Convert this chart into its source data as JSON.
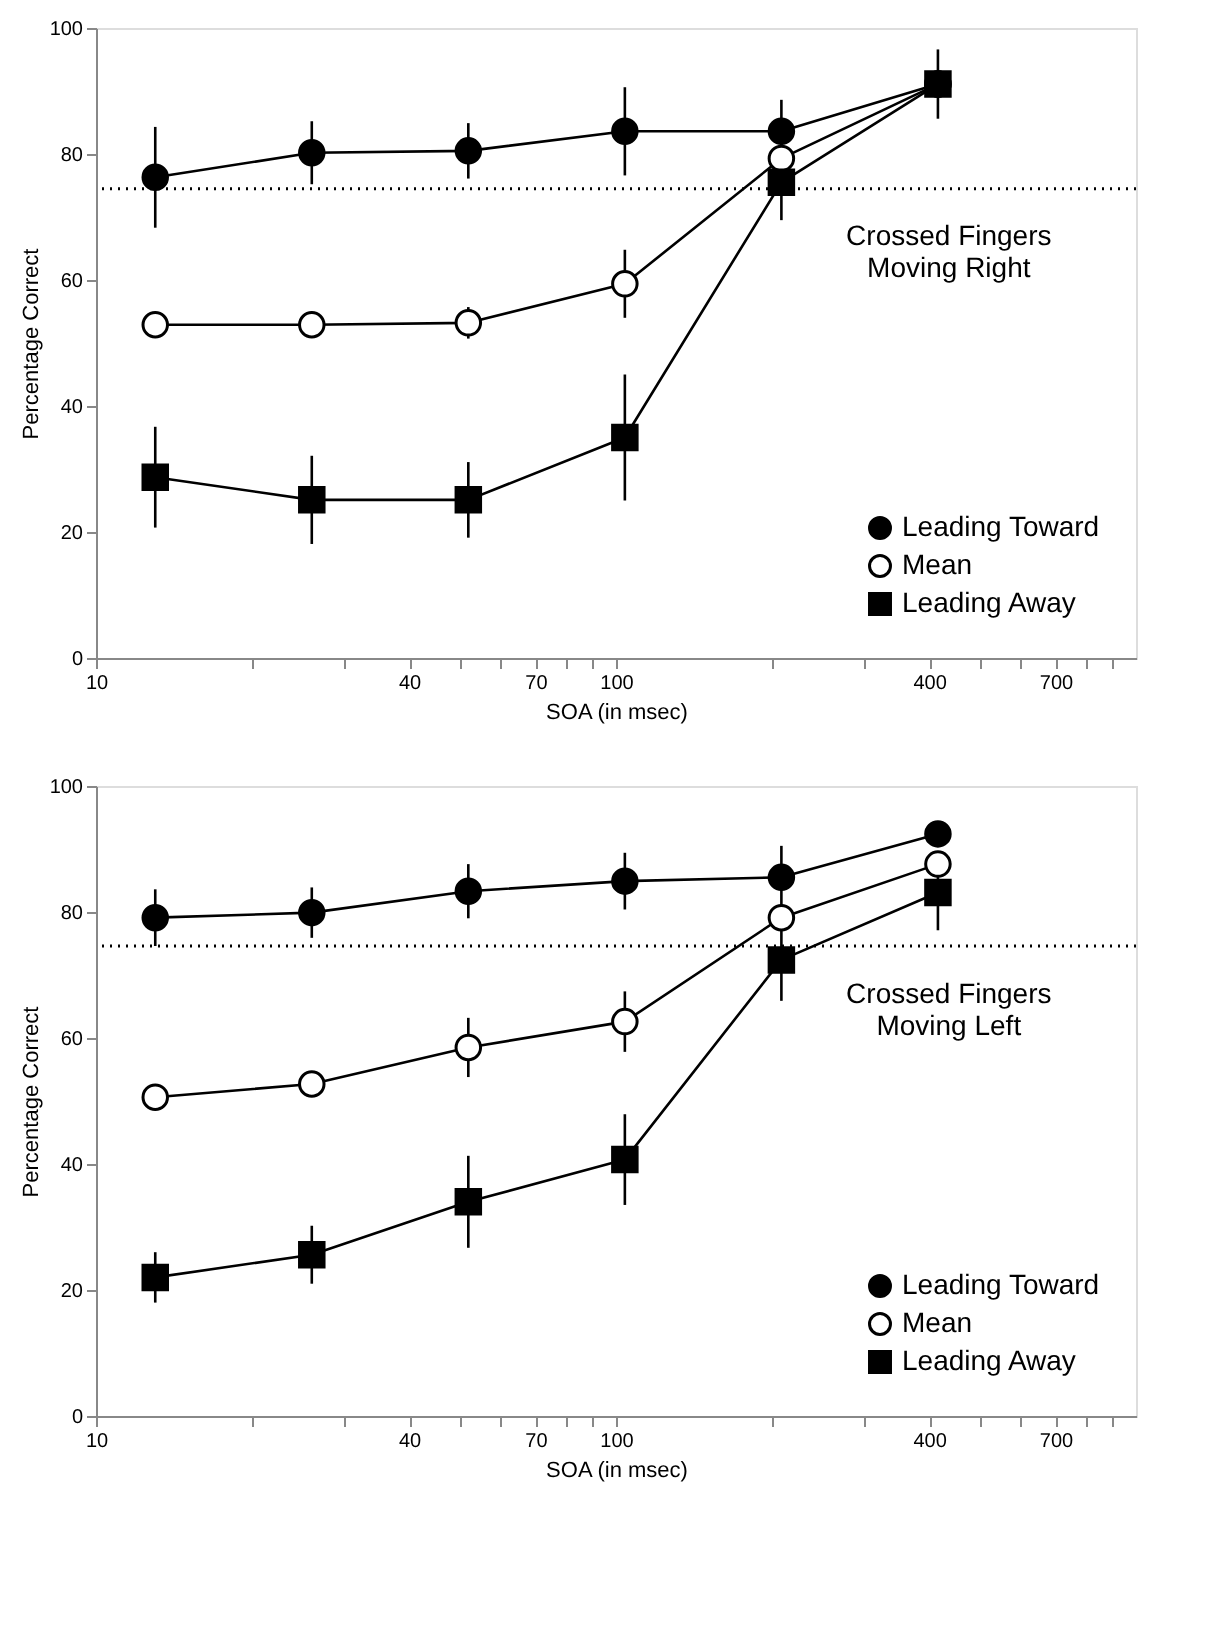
{
  "chart_data": [
    {
      "type": "line",
      "xlabel": "SOA (in msec)",
      "ylabel": "Percentage Correct",
      "log": "x",
      "xlim": [
        10,
        1000
      ],
      "ylim": [
        0,
        100
      ],
      "xticks": [
        10,
        {
          "value": 20,
          "label": null
        },
        {
          "value": 30,
          "label": null
        },
        40,
        {
          "value": 50,
          "label": null
        },
        {
          "value": 60,
          "label": null
        },
        70,
        {
          "value": 80,
          "label": null
        },
        {
          "value": 90,
          "label": null
        },
        100,
        {
          "value": 200,
          "label": null
        },
        {
          "value": 300,
          "label": null
        },
        400,
        {
          "value": 500,
          "label": null
        },
        {
          "value": 600,
          "label": null
        },
        700,
        {
          "value": 800,
          "label": null
        },
        {
          "value": 900,
          "label": null
        }
      ],
      "yticks": [
        0,
        20,
        40,
        60,
        80,
        100
      ],
      "grid": false,
      "legend": "bottom right",
      "line_style": "solid",
      "x": [
        13,
        26,
        52,
        104,
        208,
        416
      ],
      "series": [
        {
          "name": "Leading Toward",
          "color": "#000000",
          "marker": "circle",
          "values": [
            76.3,
            80.2,
            80.5,
            83.6,
            83.6,
            91.1
          ],
          "errors": [
            8,
            5,
            4.4,
            7,
            5,
            null
          ]
        },
        {
          "name": "Mean",
          "color": "#000000",
          "marker": "circle",
          "values": [
            52.9,
            52.9,
            53.2,
            59.4,
            79.3,
            91.1
          ],
          "errors": [
            null,
            null,
            2.5,
            5.4,
            null,
            null
          ]
        },
        {
          "name": "Leading Away",
          "color": "#000000",
          "marker": "square",
          "values": [
            28.7,
            25.1,
            25.1,
            35.0,
            75.5,
            91.1
          ],
          "errors": [
            8,
            7,
            6,
            10,
            6,
            5.5
          ]
        }
      ],
      "ref_lines": [
        {
          "axis": "y",
          "value": 74.5,
          "label": null,
          "line_style": "dotted",
          "color": "#000000"
        }
      ],
      "annotations": [
        "Crossed Fingers\nMoving Right"
      ]
    },
    {
      "type": "line",
      "xlabel": "SOA (in msec)",
      "ylabel": "Percentage Correct",
      "log": "x",
      "xlim": [
        10,
        1000
      ],
      "ylim": [
        0,
        100
      ],
      "xticks": [
        10,
        {
          "value": 20,
          "label": null
        },
        {
          "value": 30,
          "label": null
        },
        40,
        {
          "value": 50,
          "label": null
        },
        {
          "value": 60,
          "label": null
        },
        70,
        {
          "value": 80,
          "label": null
        },
        {
          "value": 90,
          "label": null
        },
        100,
        {
          "value": 200,
          "label": null
        },
        {
          "value": 300,
          "label": null
        },
        400,
        {
          "value": 500,
          "label": null
        },
        {
          "value": 600,
          "label": null
        },
        700,
        {
          "value": 800,
          "label": null
        },
        {
          "value": 900,
          "label": null
        }
      ],
      "yticks": [
        0,
        20,
        40,
        60,
        80,
        100
      ],
      "grid": false,
      "legend": "bottom right",
      "line_style": "solid",
      "x": [
        13,
        26,
        52,
        104,
        208,
        416
      ],
      "series": [
        {
          "name": "Leading Toward",
          "color": "#000000",
          "marker": "circle",
          "values": [
            79.1,
            79.9,
            83.3,
            84.9,
            85.5,
            92.4
          ],
          "errors": [
            4.5,
            4,
            4.3,
            4.5,
            5,
            null
          ]
        },
        {
          "name": "Mean",
          "color": "#000000",
          "marker": "circle",
          "values": [
            50.6,
            52.7,
            58.5,
            62.6,
            79.1,
            87.6
          ],
          "errors": [
            null,
            null,
            4.7,
            4.8,
            null,
            null
          ]
        },
        {
          "name": "Leading Away",
          "color": "#000000",
          "marker": "square",
          "values": [
            22.0,
            25.6,
            34.0,
            40.7,
            72.4,
            83.1
          ],
          "errors": [
            4,
            4.6,
            7.3,
            7.2,
            6.5,
            6
          ]
        }
      ],
      "ref_lines": [
        {
          "axis": "y",
          "value": 74.6,
          "label": null,
          "line_style": "dotted",
          "color": "#000000"
        }
      ],
      "annotations": [
        "Crossed Fingers\nMoving Left"
      ]
    }
  ]
}
